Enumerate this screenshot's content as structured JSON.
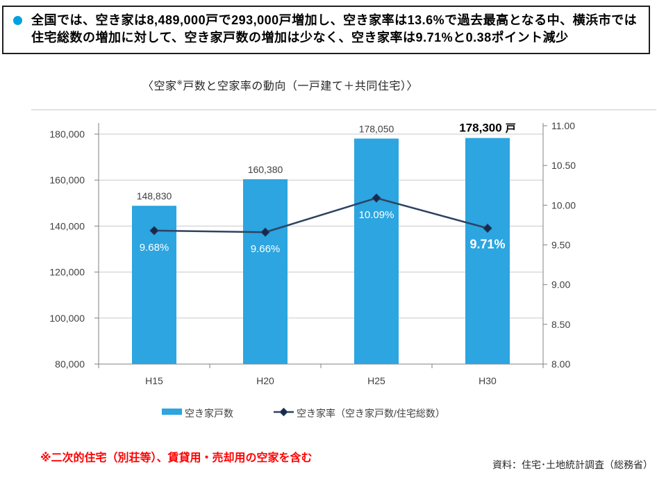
{
  "summary": {
    "text": "全国では、空き家は8,489,000戸で293,000戸増加し、空き家率は13.6%で過去最高となる中、横浜市では住宅総数の増加に対して、空き家戸数の増加は少なく、空き家率は9.71%と0.38ポイント減少",
    "bullet_color": "#00a0e0"
  },
  "title": {
    "pre": "〈空家",
    "note": "※",
    "post": "戸数と空家率の動向（一戸建て＋共同住宅）〉"
  },
  "chart_data": {
    "type": "bar",
    "title": "〈空家※戸数と空家率の動向（一戸建て＋共同住宅）〉",
    "categories": [
      "H15",
      "H20",
      "H25",
      "H30"
    ],
    "series": [
      {
        "name": "空き家戸数",
        "type": "bar",
        "axis": "left",
        "values": [
          148830,
          160380,
          178050,
          178300
        ],
        "data_labels": [
          "148,830",
          "160,380",
          "178,050",
          "178,300"
        ],
        "last_label_unit": "戸",
        "color": "#2ca5e0"
      },
      {
        "name": "空き家率（空き家戸数/住宅総数）",
        "type": "line",
        "axis": "right",
        "values": [
          9.68,
          9.66,
          10.09,
          9.71
        ],
        "data_labels": [
          "9.68%",
          "9.66%",
          "10.09%",
          "9.71%"
        ],
        "color": "#2e4262",
        "marker_fill": "#16294e"
      }
    ],
    "emphasized_index": 3,
    "left_axis": {
      "min": 80000,
      "max": 180000,
      "step": 20000,
      "ticks": [
        "180,000",
        "160,000",
        "140,000",
        "120,000",
        "100,000",
        "80,000"
      ]
    },
    "right_axis": {
      "min": 8,
      "max": 11,
      "step": 0.5,
      "ticks": [
        "11.00",
        "10.50",
        "10.00",
        "9.50",
        "9.00",
        "8.50",
        "8.00"
      ]
    },
    "grid": true,
    "legend_position": "bottom",
    "style": {
      "grid_line": "#c9c9c9",
      "axis_line": "#808080",
      "frame_line": "#d9d9d9",
      "text": "#3f3f3f",
      "label_text": "#404040",
      "emphasis_text": "#000000",
      "percent_text": "#ffffff"
    }
  },
  "footnote": {
    "text": "※二次的住宅（別荘等）、賃貸用・売却用の空家を含む",
    "color": "#ff0000"
  },
  "source": {
    "text": "資料：住宅･土地統計調査（総務省）"
  }
}
